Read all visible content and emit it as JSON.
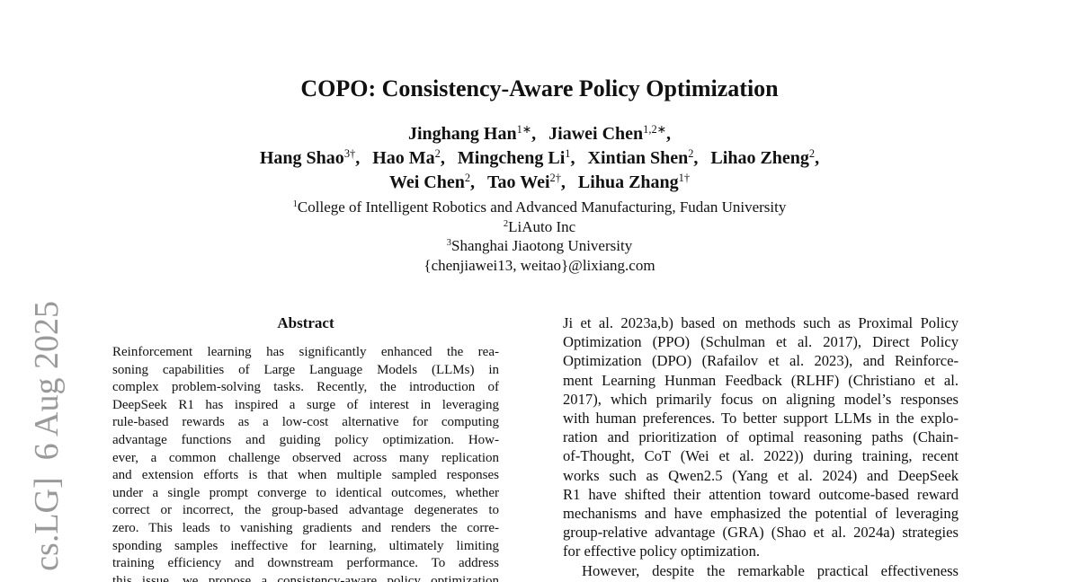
{
  "title": "COPO: Consistency-Aware Policy Optimization",
  "authors": [
    [
      {
        "name": "Jinghang Han",
        "sup": "1∗",
        "punct": ","
      },
      {
        "name": "Jiawei Chen",
        "sup": "1,2∗",
        "punct": ","
      }
    ],
    [
      {
        "name": "Hang Shao",
        "sup": "3†",
        "punct": ","
      },
      {
        "name": "Hao Ma",
        "sup": "2",
        "punct": ","
      },
      {
        "name": "Mingcheng Li",
        "sup": "1",
        "punct": ","
      },
      {
        "name": "Xintian Shen",
        "sup": "2",
        "punct": ","
      },
      {
        "name": "Lihao Zheng",
        "sup": "2",
        "punct": ","
      }
    ],
    [
      {
        "name": "Wei Chen",
        "sup": "2",
        "punct": ","
      },
      {
        "name": "Tao Wei",
        "sup": "2†",
        "punct": ","
      },
      {
        "name": "Lihua Zhang",
        "sup": "1†"
      }
    ]
  ],
  "affiliations": [
    {
      "sup": "1",
      "text": "College of Intelligent Robotics and Advanced Manufacturing, Fudan University"
    },
    {
      "sup": "2",
      "text": "LiAuto Inc"
    },
    {
      "sup": "3",
      "text": "Shanghai Jiaotong University"
    }
  ],
  "email": "{chenjiawei13, weitao}@lixiang.com",
  "arxiv_stamp": "cs.LG]  6 Aug 2025",
  "abstract": {
    "heading": "Abstract",
    "lines": [
      "Reinforcement learning has significantly enhanced the rea-",
      "soning capabilities of Large Language Models (LLMs) in",
      "complex problem-solving tasks. Recently, the introduction of",
      "DeepSeek R1 has inspired a surge of interest in leveraging",
      "rule-based rewards as a low-cost alternative for computing",
      "advantage functions and guiding policy optimization. How-",
      "ever, a common challenge observed across many replication",
      "and extension efforts is that when multiple sampled responses",
      "under a single prompt converge to identical outcomes, whether",
      "correct or incorrect, the group-based advantage degenerates to",
      "zero. This leads to vanishing gradients and renders the corre-",
      "sponding samples ineffective for learning, ultimately limiting",
      "training efficiency and downstream performance. To address",
      "this issue, we propose a consistency-aware policy optimization"
    ]
  },
  "right_column": {
    "paragraphs": [
      [
        "Ji et al. 2023a,b) based on methods such as Proximal Policy",
        "Optimization (PPO) (Schulman et al. 2017), Direct Policy",
        "Optimization (DPO) (Rafailov et al. 2023), and Reinforce-",
        "ment Learning Hunman Feedback (RLHF) (Christiano et al.",
        "2017), which primarily focus on aligning model’s responses",
        "with human preferences. To better support LLMs in the explo-",
        "ration and prioritization of optimal reasoning paths (Chain-",
        "of-Thought, CoT (Wei et al. 2022)) during training, recent",
        "works such as Qwen2.5 (Yang et al. 2024) and DeepSeek",
        "R1 have shifted their attention toward outcome-based reward",
        "mechanisms and have emphasized the potential of leveraging",
        "group-relative advantage (GRA) (Shao et al. 2024a) strategies",
        "for effective policy optimization."
      ],
      [
        "However, despite the remarkable practical effectiveness"
      ]
    ]
  }
}
